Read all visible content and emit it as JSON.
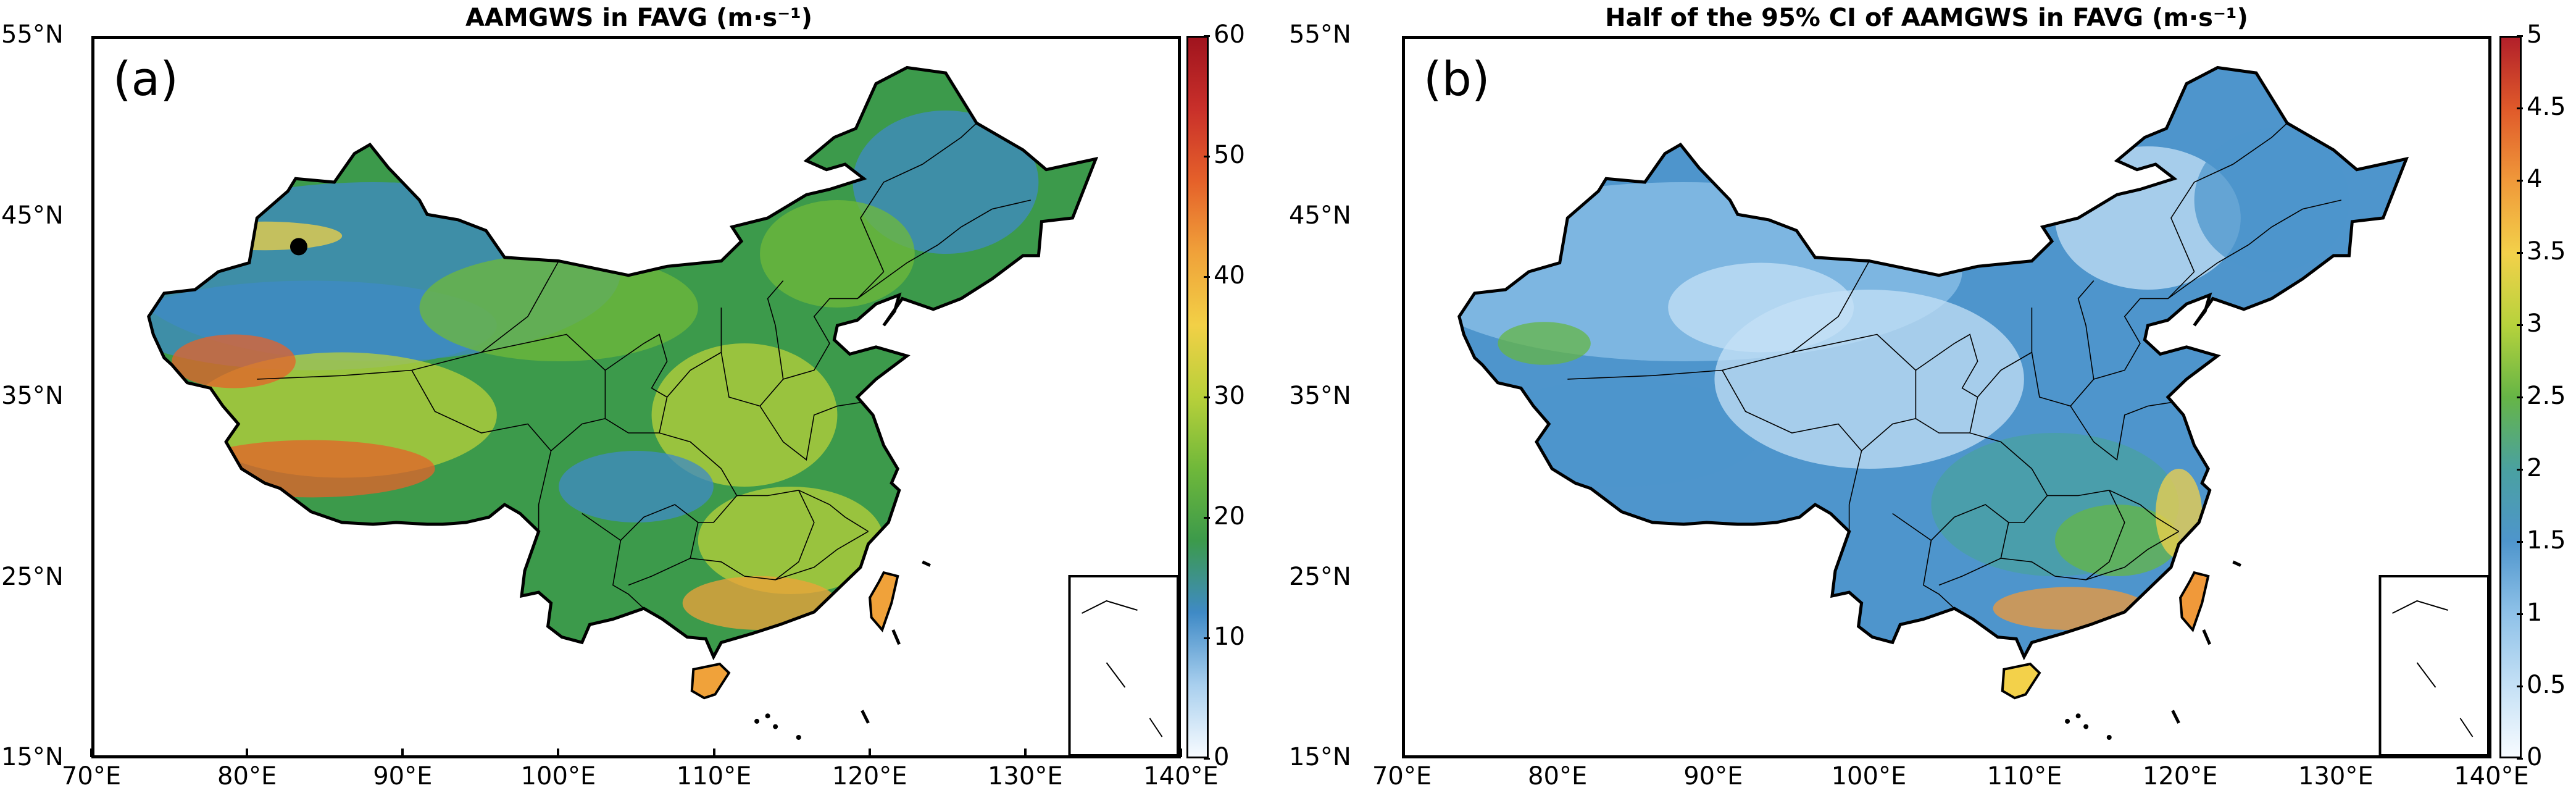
{
  "panels": [
    {
      "id": "a",
      "letter": "(a)",
      "title": "AAMGWS in FAVG (m·s⁻¹)",
      "colorbar": {
        "ticks": [
          "0",
          "10",
          "20",
          "30",
          "40",
          "50",
          "60"
        ],
        "colors": [
          "#f7fbff",
          "#a8cfee",
          "#3f8ac6",
          "#3c9a4b",
          "#6fb83a",
          "#b8d03a",
          "#f2d046",
          "#f0a23a",
          "#e5612a",
          "#c9302a",
          "#a0141e"
        ]
      },
      "marker": {
        "label": "black-dot",
        "lon": 83.2,
        "lat": 43.4
      },
      "fill_style": "high"
    },
    {
      "id": "b",
      "letter": "(b)",
      "title": "Half of the 95% CI of AAMGWS in FAVG (m·s⁻¹)",
      "colorbar": {
        "ticks": [
          "0",
          "0.5",
          "1",
          "1.5",
          "2",
          "2.5",
          "3",
          "3.5",
          "4",
          "4.5",
          "5"
        ],
        "colors": [
          "#f7fbff",
          "#c4e0f5",
          "#8ec1e8",
          "#4e95cc",
          "#4aa1a0",
          "#66b546",
          "#b6d23c",
          "#f3d14a",
          "#f0993a",
          "#e05a2a",
          "#b2202a"
        ]
      },
      "fill_style": "low"
    }
  ],
  "axes": {
    "x_ticks": [
      "70°E",
      "80°E",
      "90°E",
      "100°E",
      "110°E",
      "120°E",
      "130°E",
      "140°E"
    ],
    "y_ticks": [
      "15°N",
      "25°N",
      "35°N",
      "45°N",
      "55°N"
    ],
    "lon_range": [
      70,
      140
    ],
    "lat_range": [
      15,
      55
    ]
  }
}
